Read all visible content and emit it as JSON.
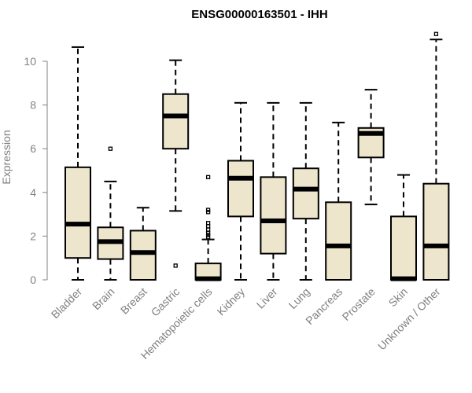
{
  "chart_data": {
    "type": "boxplot",
    "title": "ENSG00000163501 - IHH",
    "xlabel": "",
    "ylabel": "Expression",
    "ylim": [
      0,
      11.3
    ],
    "yticks": [
      0,
      2,
      4,
      6,
      8,
      10
    ],
    "colors": {
      "box_fill": "#ede6cc",
      "box_stroke": "#000000",
      "axis": "#808080",
      "tick_text": "#808080"
    },
    "categories": [
      "Bladder",
      "Brain",
      "Breast",
      "Gastric",
      "Hematopoietic cells",
      "Kidney",
      "Liver",
      "Lung",
      "Pancreas",
      "Prostate",
      "Skin",
      "Unknown / Other"
    ],
    "boxes": [
      {
        "name": "Bladder",
        "whisker_low": 0,
        "q1": 1.0,
        "median": 2.55,
        "q3": 5.15,
        "whisker_high": 10.65,
        "outliers": []
      },
      {
        "name": "Brain",
        "whisker_low": 0,
        "q1": 0.95,
        "median": 1.75,
        "q3": 2.4,
        "whisker_high": 4.5,
        "outliers": [
          6.0
        ]
      },
      {
        "name": "Breast",
        "whisker_low": 0,
        "q1": 0,
        "median": 1.25,
        "q3": 2.25,
        "whisker_high": 3.3,
        "outliers": []
      },
      {
        "name": "Gastric",
        "whisker_low": 3.15,
        "q1": 6.0,
        "median": 7.5,
        "q3": 8.5,
        "whisker_high": 10.05,
        "outliers": [
          0.65
        ]
      },
      {
        "name": "Hematopoietic cells",
        "whisker_low": 0,
        "q1": 0,
        "median": 0.05,
        "q3": 0.75,
        "whisker_high": 1.85,
        "outliers": [
          1.95,
          2.05,
          2.15,
          2.3,
          2.45,
          2.6,
          3.1,
          3.2,
          4.7
        ]
      },
      {
        "name": "Kidney",
        "whisker_low": 0,
        "q1": 2.9,
        "median": 4.65,
        "q3": 5.45,
        "whisker_high": 8.1,
        "outliers": []
      },
      {
        "name": "Liver",
        "whisker_low": 0,
        "q1": 1.2,
        "median": 2.7,
        "q3": 4.7,
        "whisker_high": 8.1,
        "outliers": []
      },
      {
        "name": "Lung",
        "whisker_low": 0,
        "q1": 2.8,
        "median": 4.15,
        "q3": 5.1,
        "whisker_high": 8.1,
        "outliers": []
      },
      {
        "name": "Pancreas",
        "whisker_low": 0,
        "q1": 0,
        "median": 1.55,
        "q3": 3.55,
        "whisker_high": 7.2,
        "outliers": []
      },
      {
        "name": "Prostate",
        "whisker_low": 3.45,
        "q1": 5.6,
        "median": 6.7,
        "q3": 6.95,
        "whisker_high": 8.7,
        "outliers": []
      },
      {
        "name": "Skin",
        "whisker_low": 0,
        "q1": 0,
        "median": 0.05,
        "q3": 2.9,
        "whisker_high": 4.8,
        "outliers": []
      },
      {
        "name": "Unknown / Other",
        "whisker_low": 0,
        "q1": 0,
        "median": 1.55,
        "q3": 4.4,
        "whisker_high": 11.0,
        "outliers": [
          11.25
        ]
      }
    ]
  }
}
